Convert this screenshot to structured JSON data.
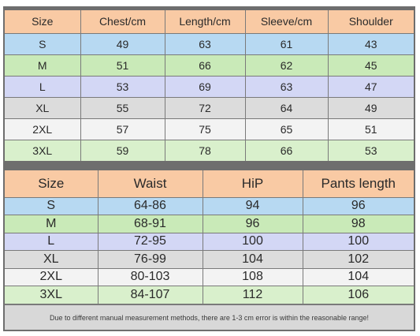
{
  "colors": {
    "header": "#f9caa4",
    "row_colors": [
      "#b7d9f2",
      "#c9eab8",
      "#d3d7f5",
      "#dcdcdc",
      "#f3f3f3",
      "#d9f0cc"
    ]
  },
  "top_table": {
    "headers": [
      "Size",
      "Chest/cm",
      "Length/cm",
      "Sleeve/cm",
      "Shoulder"
    ],
    "rows": [
      [
        "S",
        "49",
        "63",
        "61",
        "43"
      ],
      [
        "M",
        "51",
        "66",
        "62",
        "45"
      ],
      [
        "L",
        "53",
        "69",
        "63",
        "47"
      ],
      [
        "XL",
        "55",
        "72",
        "64",
        "49"
      ],
      [
        "2XL",
        "57",
        "75",
        "65",
        "51"
      ],
      [
        "3XL",
        "59",
        "78",
        "66",
        "53"
      ]
    ]
  },
  "bottom_table": {
    "headers": [
      "Size",
      "Waist",
      "HiP",
      "Pants length"
    ],
    "rows": [
      [
        "S",
        "64-86",
        "94",
        "96"
      ],
      [
        "M",
        "68-91",
        "96",
        "98"
      ],
      [
        "L",
        "72-95",
        "100",
        "100"
      ],
      [
        "XL",
        "76-99",
        "104",
        "102"
      ],
      [
        "2XL",
        "80-103",
        "108",
        "104"
      ],
      [
        "3XL",
        "84-107",
        "112",
        "106"
      ]
    ]
  },
  "footer_note": "Due to different manual measurement methods, there are 1-3 cm error is within the reasonable range!"
}
